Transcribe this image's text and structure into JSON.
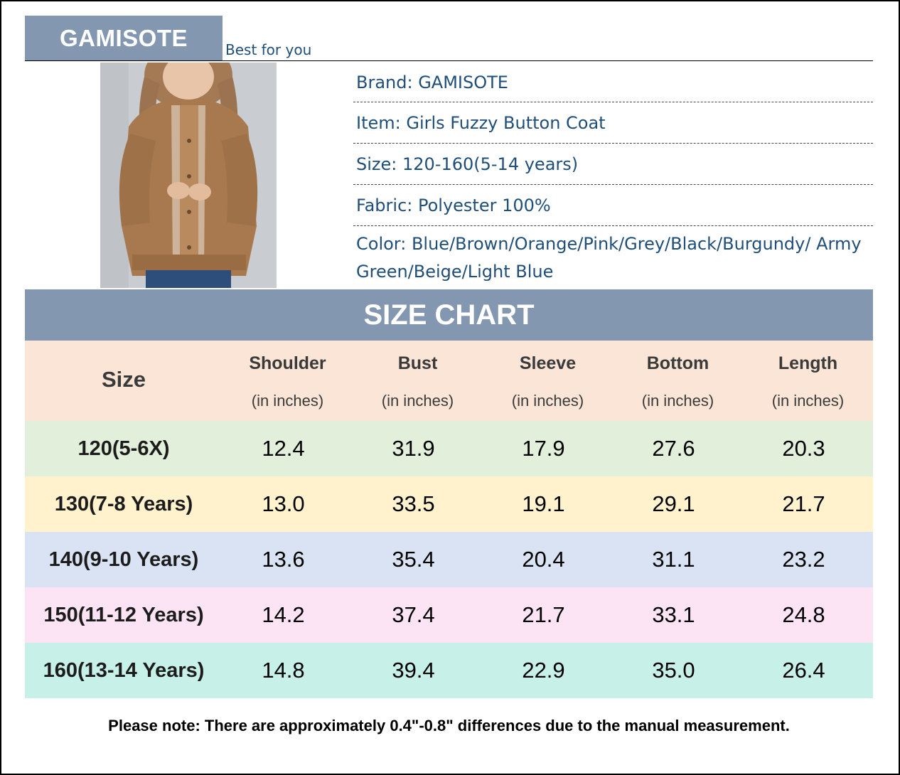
{
  "header": {
    "brand_label": "GAMISOTE",
    "tagline": "Best for you"
  },
  "product_photo": {
    "subject": "girl-in-fuzzy-button-coat"
  },
  "product_info": [
    "Brand: GAMISOTE",
    "Item: Girls Fuzzy Button Coat",
    "Size: 120-160(5-14 years)",
    "Fabric: Polyester 100%",
    "Color: Blue/Brown/Orange/Pink/Grey/Black/Burgundy/ Army Green/Beige/Light Blue"
  ],
  "size_chart": {
    "title": "SIZE CHART",
    "size_header": "Size",
    "columns": [
      {
        "name": "Shoulder",
        "unit": "(in inches)"
      },
      {
        "name": "Bust",
        "unit": "(in inches)"
      },
      {
        "name": "Sleeve",
        "unit": "(in inches)"
      },
      {
        "name": "Bottom",
        "unit": "(in inches)"
      },
      {
        "name": "Length",
        "unit": "(in inches)"
      }
    ],
    "header_color": "#fbe5d6",
    "rows": [
      {
        "size": "120(5-6X)",
        "values": [
          "12.4",
          "31.9",
          "17.9",
          "27.6",
          "20.3"
        ],
        "color": "#e2efda"
      },
      {
        "size": "130(7-8 Years)",
        "values": [
          "13.0",
          "33.5",
          "19.1",
          "29.1",
          "21.7"
        ],
        "color": "#fff2cc"
      },
      {
        "size": "140(9-10 Years)",
        "values": [
          "13.6",
          "35.4",
          "20.4",
          "31.1",
          "23.2"
        ],
        "color": "#dae3f3"
      },
      {
        "size": "150(11-12 Years)",
        "values": [
          "14.2",
          "37.4",
          "21.7",
          "33.1",
          "24.8"
        ],
        "color": "#fce4f5"
      },
      {
        "size": "160(13-14 Years)",
        "values": [
          "14.8",
          "39.4",
          "22.9",
          "35.0",
          "26.4"
        ],
        "color": "#c6f0e8"
      }
    ]
  },
  "footer_note": "Please note: There are approximately 0.4\"-0.8\" differences due to the manual measurement.",
  "colors": {
    "accent": "#8497b0",
    "info_text": "#1f4e79"
  }
}
